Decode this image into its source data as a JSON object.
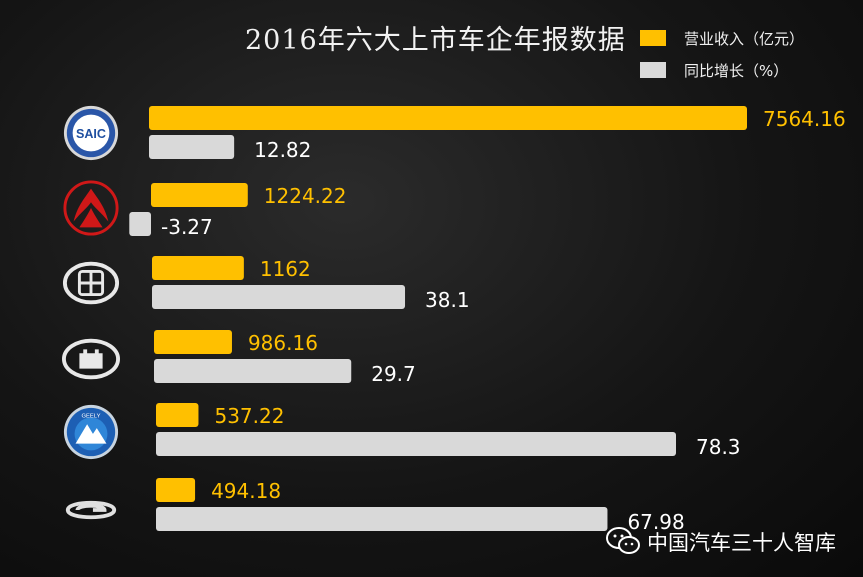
{
  "chart_data": {
    "type": "bar",
    "title": "2016年六大上市车企年报数据",
    "categories": [
      "SAIC",
      "东风",
      "北汽",
      "长城",
      "GEELY",
      "广汽"
    ],
    "series": [
      {
        "name": "营业收入（亿元）",
        "values": [
          7564.16,
          1224.22,
          1162,
          986.16,
          537.22,
          494.18
        ],
        "color": "#ffc000",
        "label_color": "#ffc000"
      },
      {
        "name": "同比增长（%）",
        "values": [
          12.82,
          -3.27,
          38.1,
          29.7,
          78.3,
          67.98
        ],
        "color": "#d9d9d9",
        "label_color": "#ffffff"
      }
    ],
    "value_labels": {
      "revenue": [
        "7564.16",
        "1224.22",
        "1162",
        "986.16",
        "537.22",
        "494.18"
      ],
      "growth": [
        "12.82",
        "-3.27",
        "38.1",
        "29.7",
        "78.3",
        "67.98"
      ]
    },
    "legend_position": "top-right",
    "grid": false
  },
  "logos": [
    {
      "icon": "saic-logo-icon",
      "text": "SAIC"
    },
    {
      "icon": "dongfeng-logo-icon"
    },
    {
      "icon": "baic-logo-icon"
    },
    {
      "icon": "greatwall-logo-icon"
    },
    {
      "icon": "geely-logo-icon",
      "text": "GEELY"
    },
    {
      "icon": "gac-logo-icon"
    }
  ],
  "watermark": {
    "text": "中国汽车三十人智库",
    "icon": "wechat-icon"
  },
  "colors": {
    "background": "#141414",
    "revenue": "#ffc000",
    "growth": "#d9d9d9",
    "text": "#ffffff"
  }
}
